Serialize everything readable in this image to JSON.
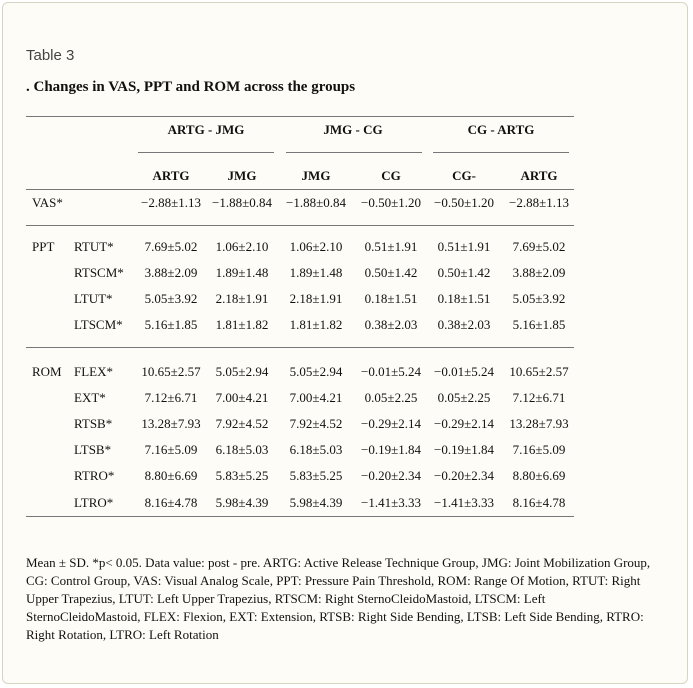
{
  "label": "Table 3",
  "title": ". Changes in VAS, PPT and ROM across the groups",
  "table": {
    "group_headers": [
      "ARTG - JMG",
      "JMG - CG",
      "CG - ARTG"
    ],
    "sub_headers": [
      "ARTG",
      "JMG",
      "JMG",
      "CG",
      "CG-",
      "ARTG"
    ],
    "sections": [
      [
        {
          "group": "VAS*",
          "cells": [
            "−2.88±1.13",
            "−1.88±0.84",
            "−1.88±0.84",
            "−0.50±1.20",
            "−0.50±1.20",
            "−2.88±1.13"
          ]
        }
      ],
      [
        {
          "group": "PPT",
          "item": "RTUT*",
          "cells": [
            "7.69±5.02",
            "1.06±2.10",
            "1.06±2.10",
            "0.51±1.91",
            "0.51±1.91",
            "7.69±5.02"
          ]
        },
        {
          "item": "RTSCM*",
          "cells": [
            "3.88±2.09",
            "1.89±1.48",
            "1.89±1.48",
            "0.50±1.42",
            "0.50±1.42",
            "3.88±2.09"
          ]
        },
        {
          "item": "LTUT*",
          "cells": [
            "5.05±3.92",
            "2.18±1.91",
            "2.18±1.91",
            "0.18±1.51",
            "0.18±1.51",
            "5.05±3.92"
          ]
        },
        {
          "item": "LTSCM*",
          "cells": [
            "5.16±1.85",
            "1.81±1.82",
            "1.81±1.82",
            "0.38±2.03",
            "0.38±2.03",
            "5.16±1.85"
          ]
        }
      ],
      [
        {
          "group": "ROM",
          "item": "FLEX*",
          "cells": [
            "10.65±2.57",
            "5.05±2.94",
            "5.05±2.94",
            "−0.01±5.24",
            "−0.01±5.24",
            "10.65±2.57"
          ]
        },
        {
          "item": "EXT*",
          "cells": [
            "7.12±6.71",
            "7.00±4.21",
            "7.00±4.21",
            "0.05±2.25",
            "0.05±2.25",
            "7.12±6.71"
          ]
        },
        {
          "item": "RTSB*",
          "cells": [
            "13.28±7.93",
            "7.92±4.52",
            "7.92±4.52",
            "−0.29±2.14",
            "−0.29±2.14",
            "13.28±7.93"
          ]
        },
        {
          "item": "LTSB*",
          "cells": [
            "7.16±5.09",
            "6.18±5.03",
            "6.18±5.03",
            "−0.19±1.84",
            "−0.19±1.84",
            "7.16±5.09"
          ]
        },
        {
          "item": "RTRO*",
          "cells": [
            "8.80±6.69",
            "5.83±5.25",
            "5.83±5.25",
            "−0.20±2.34",
            "−0.20±2.34",
            "8.80±6.69"
          ]
        },
        {
          "item": "LTRO*",
          "cells": [
            "8.16±4.78",
            "5.98±4.39",
            "5.98±4.39",
            "−1.41±3.33",
            "−1.41±3.33",
            "8.16±4.78"
          ]
        }
      ]
    ]
  },
  "footnote": "Mean ± SD. *p< 0.05. Data value: post - pre. ARTG: Active Release Technique Group, JMG: Joint Mobilization Group, CG: Control Group, VAS: Visual Analog Scale, PPT: Pressure Pain Threshold, ROM: Range Of Motion, RTUT: Right Upper Trapezius, LTUT: Left Upper Trapezius, RTSCM: Right SternoCleidoMastoid, LTSCM: Left SternoCleidoMastoid, FLEX: Flexion, EXT: Extension, RTSB: Right Side Bending, LTSB: Left Side Bending, RTRO: Right Rotation, LTRO: Left Rotation"
}
